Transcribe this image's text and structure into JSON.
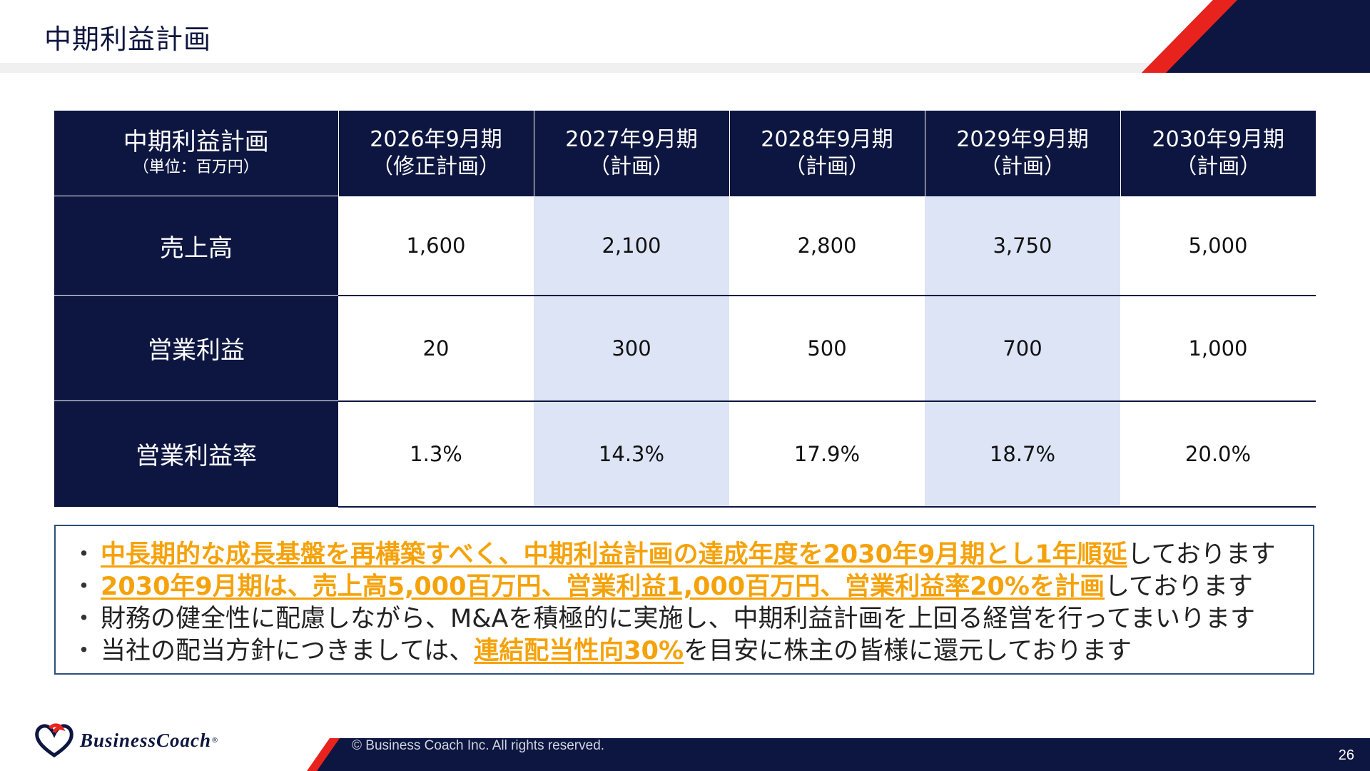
{
  "page": {
    "title": "中期利益計画",
    "page_number": "26"
  },
  "colors": {
    "navy": "#0d1640",
    "shade": "#dce4f5",
    "highlight": "#f5a20a",
    "accent_red": "#e8231e"
  },
  "table": {
    "corner_label": "中期利益計画",
    "corner_sub": "（単位：百万円）",
    "columns": [
      {
        "year": "2026年9月期",
        "status": "（修正計画）"
      },
      {
        "year": "2027年9月期",
        "status": "（計画）"
      },
      {
        "year": "2028年9月期",
        "status": "（計画）"
      },
      {
        "year": "2029年9月期",
        "status": "（計画）"
      },
      {
        "year": "2030年9月期",
        "status": "（計画）"
      }
    ],
    "rows": [
      {
        "label": "売上高",
        "values": [
          "1,600",
          "2,100",
          "2,800",
          "3,750",
          "5,000"
        ]
      },
      {
        "label": "営業利益",
        "values": [
          "20",
          "300",
          "500",
          "700",
          "1,000"
        ]
      },
      {
        "label": "営業利益率",
        "values": [
          "1.3%",
          "14.3%",
          "17.9%",
          "18.7%",
          "20.0%"
        ]
      }
    ]
  },
  "notes": {
    "bullet": "・",
    "n1_hl": "中長期的な成長基盤を再構築すべく、中期利益計画の達成年度を2030年9月期とし1年順延",
    "n1_rest": "しております",
    "n2_hl": "2030年9月期は、売上高5,000百万円、営業利益1,000百万円、営業利益率20%を計画",
    "n2_rest": "しております",
    "n3": "財務の健全性に配慮しながら、M&Aを積極的に実施し、中期利益計画を上回る経営を行ってまいります",
    "n4_pre": "当社の配当方針につきましては、",
    "n4_hl": "連結配当性向30%",
    "n4_rest": "を目安に株主の皆様に還元しております"
  },
  "footer": {
    "copyright": "© Business Coach Inc. All rights reserved.",
    "logo_text": "BusinessCoach",
    "logo_mark": "®"
  }
}
